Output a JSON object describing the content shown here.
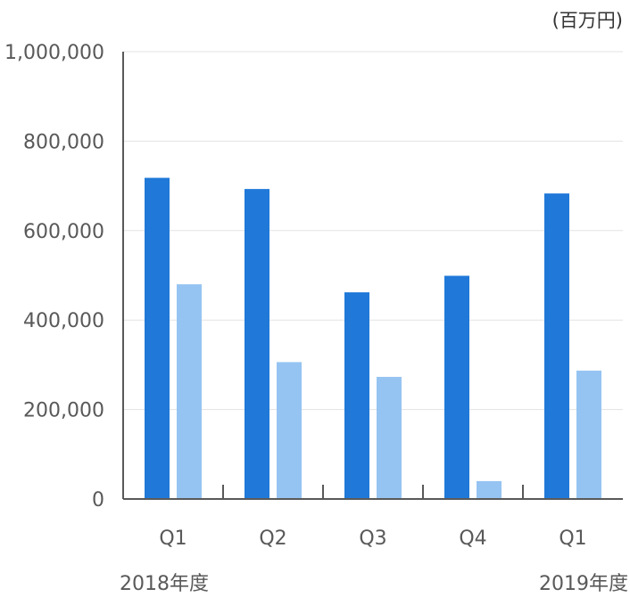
{
  "chart_data": {
    "type": "bar",
    "unit_label": "(百万円)",
    "categories": [
      "Q1",
      "Q2",
      "Q3",
      "Q4",
      "Q1"
    ],
    "year_labels": [
      {
        "label": "2018年度",
        "category_index": 0
      },
      {
        "label": "2019年度",
        "category_index": 4
      }
    ],
    "series": [
      {
        "color": "#2079d8",
        "values": [
          718000,
          693000,
          462000,
          499000,
          683000
        ]
      },
      {
        "color": "#96c4f2",
        "values": [
          480000,
          306000,
          273000,
          40000,
          287000
        ]
      }
    ],
    "y_ticks": [
      {
        "value": 0,
        "label": "0"
      },
      {
        "value": 200000,
        "label": "200,000"
      },
      {
        "value": 400000,
        "label": "400,000"
      },
      {
        "value": 600000,
        "label": "600,000"
      },
      {
        "value": 800000,
        "label": "800,000"
      },
      {
        "value": 1000000,
        "label": "1,000,000"
      }
    ],
    "ylim": [
      0,
      1000000
    ],
    "grid": true,
    "legend": "none"
  }
}
